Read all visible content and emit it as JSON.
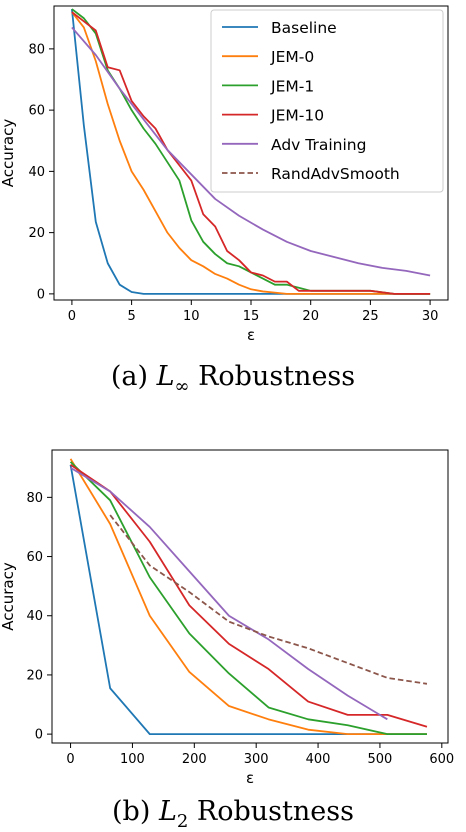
{
  "chart_data": [
    {
      "type": "line",
      "caption": "(a) L∞ Robustness",
      "caption_parts": {
        "prefix": "(a) ",
        "math_base": "L",
        "math_sub": "∞",
        "suffix": " Robustness"
      },
      "xlabel": "ε",
      "ylabel": "Accuracy",
      "xlim": [
        -1.5,
        31.5
      ],
      "ylim": [
        -2,
        94
      ],
      "xticks": [
        0,
        5,
        10,
        15,
        20,
        25,
        30
      ],
      "yticks": [
        0,
        20,
        40,
        60,
        80
      ],
      "legend_position": "top-right",
      "grid": false,
      "series": [
        {
          "name": "Baseline",
          "color": "#1f77b4",
          "dash": "solid",
          "x": [
            0,
            1,
            2,
            3,
            4,
            5,
            6,
            8,
            10,
            15,
            20,
            25,
            30
          ],
          "y": [
            93,
            55,
            23.5,
            10,
            3,
            0.6,
            0,
            0,
            0,
            0,
            0,
            0,
            0
          ]
        },
        {
          "name": "JEM-0",
          "color": "#ff7f0e",
          "dash": "solid",
          "x": [
            0,
            1,
            2,
            3,
            4,
            5,
            6,
            7,
            8,
            9,
            10,
            11,
            12,
            13,
            14,
            15,
            16,
            17,
            18,
            20,
            25,
            30
          ],
          "y": [
            92,
            87,
            76,
            62,
            50,
            40,
            34,
            27,
            20,
            15,
            11,
            9,
            6.5,
            5,
            3,
            1.5,
            0.8,
            0.4,
            0,
            0,
            0,
            0
          ]
        },
        {
          "name": "JEM-1",
          "color": "#2ca02c",
          "dash": "solid",
          "x": [
            0,
            1,
            2,
            3,
            4,
            5,
            6,
            7,
            8,
            9,
            10,
            11,
            12,
            13,
            14,
            15,
            16,
            17,
            18,
            19,
            20,
            25,
            27,
            30
          ],
          "y": [
            93,
            90,
            85,
            73,
            67,
            60,
            54,
            49,
            43,
            37,
            24,
            17,
            13,
            10,
            9,
            7,
            5,
            3,
            3,
            2,
            1,
            1,
            0,
            0
          ]
        },
        {
          "name": "JEM-10",
          "color": "#d62728",
          "dash": "solid",
          "x": [
            0,
            1,
            2,
            3,
            4,
            5,
            6,
            7,
            8,
            9,
            10,
            11,
            12,
            13,
            14,
            15,
            16,
            17,
            18,
            19,
            20,
            25,
            27,
            30
          ],
          "y": [
            92,
            89,
            86,
            74,
            73,
            63,
            58,
            54,
            47,
            42,
            37,
            26,
            22,
            14,
            11,
            7,
            6,
            4,
            4,
            1,
            1,
            1,
            0,
            0
          ]
        },
        {
          "name": "Adv Training",
          "color": "#9467bd",
          "dash": "solid",
          "x": [
            0,
            2,
            4,
            6,
            8,
            10,
            12,
            14,
            16,
            18,
            20,
            22,
            24,
            26,
            28,
            30
          ],
          "y": [
            87,
            78,
            67,
            57,
            47,
            39,
            31,
            25.5,
            21,
            17,
            14,
            12,
            10,
            8.5,
            7.5,
            6
          ]
        },
        {
          "name": "RandAdvSmooth",
          "color": "#8c564b",
          "dash": "dashed",
          "x": [],
          "y": []
        }
      ]
    },
    {
      "type": "line",
      "caption": "(b) L2 Robustness",
      "caption_parts": {
        "prefix": "(b) ",
        "math_base": "L",
        "math_sub": "2",
        "suffix": " Robustness"
      },
      "xlabel": "ε",
      "ylabel": "Accuracy",
      "xlim": [
        -30,
        610
      ],
      "ylim": [
        -3,
        96
      ],
      "xticks": [
        0,
        100,
        200,
        300,
        400,
        500,
        600
      ],
      "yticks": [
        0,
        20,
        40,
        60,
        80
      ],
      "grid": false,
      "series": [
        {
          "name": "Baseline",
          "color": "#1f77b4",
          "dash": "solid",
          "x": [
            0,
            64,
            128,
            192,
            256,
            320,
            384,
            448,
            512,
            576
          ],
          "y": [
            91,
            15.5,
            0,
            0,
            0,
            0,
            0,
            0,
            0,
            0
          ]
        },
        {
          "name": "JEM-0",
          "color": "#ff7f0e",
          "dash": "solid",
          "x": [
            0,
            64,
            128,
            192,
            256,
            320,
            384,
            448,
            512,
            576
          ],
          "y": [
            93,
            71,
            40,
            21,
            9.5,
            5,
            1.5,
            0,
            0,
            0
          ]
        },
        {
          "name": "JEM-1",
          "color": "#2ca02c",
          "dash": "solid",
          "x": [
            0,
            64,
            128,
            192,
            256,
            320,
            384,
            448,
            512,
            576
          ],
          "y": [
            92,
            79,
            53,
            34,
            20.5,
            9,
            5,
            3,
            0,
            0
          ]
        },
        {
          "name": "JEM-10",
          "color": "#d62728",
          "dash": "solid",
          "x": [
            0,
            64,
            128,
            192,
            256,
            320,
            384,
            448,
            512,
            576
          ],
          "y": [
            91,
            82,
            65,
            43.5,
            30.5,
            22,
            11,
            6.5,
            6.5,
            2.5
          ]
        },
        {
          "name": "Adv Training",
          "color": "#9467bd",
          "dash": "solid",
          "x": [
            0,
            64,
            128,
            192,
            256,
            320,
            384,
            448,
            512
          ],
          "y": [
            90,
            82,
            70,
            55,
            40,
            32,
            22,
            13,
            5
          ]
        },
        {
          "name": "RandAdvSmooth",
          "color": "#8c564b",
          "dash": "dashed",
          "x": [
            64,
            128,
            192,
            256,
            320,
            384,
            448,
            512,
            576
          ],
          "y": [
            74,
            57,
            48,
            38,
            33,
            29,
            24,
            19,
            17
          ]
        }
      ]
    }
  ]
}
